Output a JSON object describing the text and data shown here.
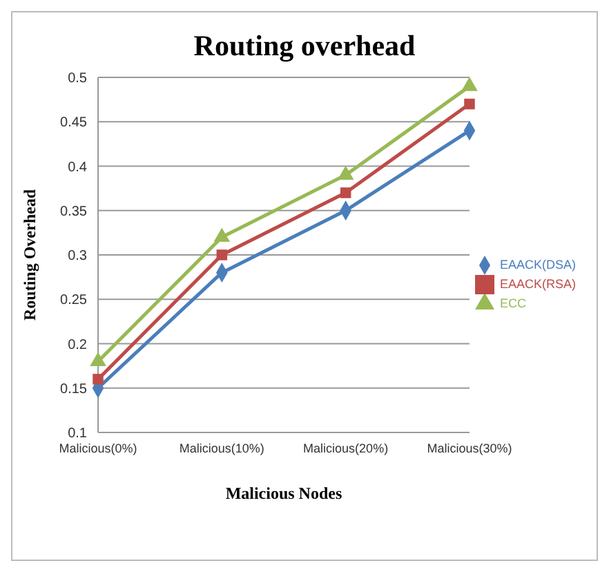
{
  "chart_data": {
    "type": "line",
    "title": "Routing overhead",
    "xlabel": "Malicious Nodes",
    "ylabel": "Routing Overhead",
    "categories": [
      "Malicious(0%)",
      "Malicious(10%)",
      "Malicious(20%)",
      "Malicious(30%)"
    ],
    "series": [
      {
        "name": "EAACK(DSA)",
        "color": "#4a7ebb",
        "values": [
          0.15,
          0.28,
          0.35,
          0.44
        ],
        "marker": "diamond"
      },
      {
        "name": "EAACK(RSA)",
        "color": "#be4b48",
        "values": [
          0.16,
          0.3,
          0.37,
          0.47
        ],
        "marker": "square"
      },
      {
        "name": "ECC",
        "color": "#98b954",
        "values": [
          0.18,
          0.32,
          0.39,
          0.49
        ],
        "marker": "triangle"
      }
    ],
    "ylim": [
      0.1,
      0.5
    ],
    "yticks": [
      0.1,
      0.15,
      0.2,
      0.25,
      0.3,
      0.35,
      0.4,
      0.45,
      0.5
    ],
    "grid": "y",
    "legend": "right"
  }
}
